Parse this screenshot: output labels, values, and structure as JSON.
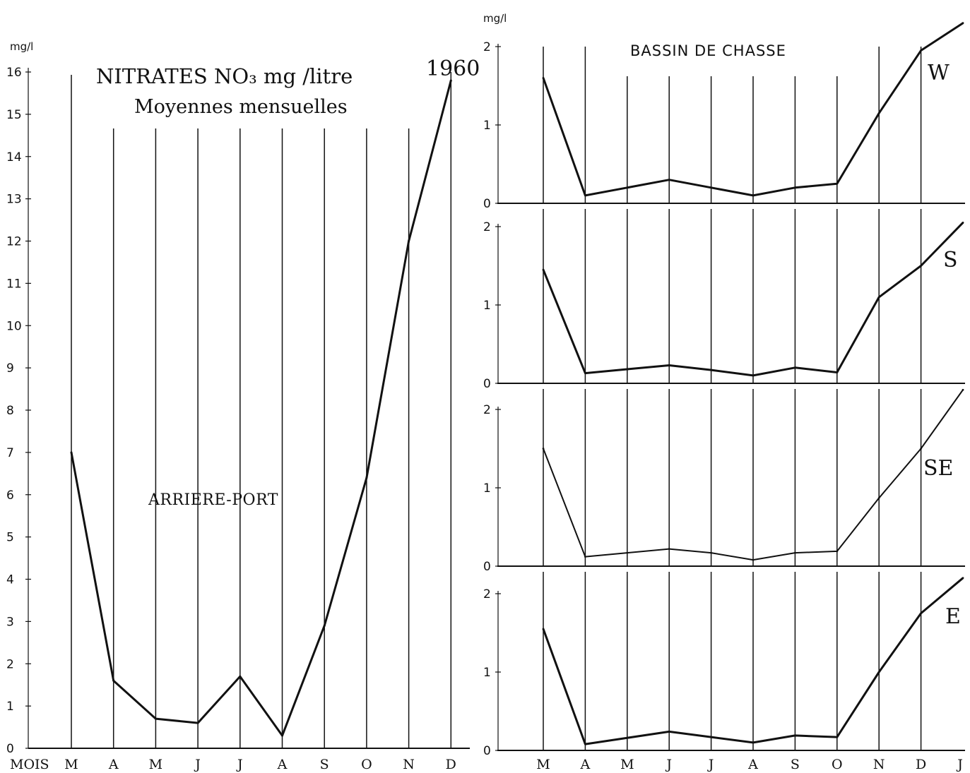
{
  "chart_data": [
    {
      "type": "line",
      "title": "NITRATES NO₃ mg /litre",
      "subtitle": "Moyennes mensuelles",
      "year": "1960",
      "annotation": "ARRIERE-PORT",
      "ylabel": "mg/l",
      "xlabel": "MOIS",
      "categories": [
        "M",
        "A",
        "M",
        "J",
        "J",
        "A",
        "S",
        "O",
        "N",
        "D"
      ],
      "yticks": [
        "0",
        "1",
        "2",
        "3",
        "4",
        "5",
        "6",
        "7",
        "8",
        "9",
        "10",
        "11",
        "12",
        "13",
        "14",
        "15",
        "16"
      ],
      "ylim": [
        0,
        16
      ],
      "series": [
        {
          "values": [
            7.0,
            1.6,
            0.7,
            0.6,
            1.7,
            0.3,
            2.9,
            6.4,
            12.0,
            15.8
          ]
        }
      ]
    },
    {
      "type": "line",
      "title": "BASSIN DE CHASSE",
      "ylabel": "mg/l",
      "categories": [
        "M",
        "A",
        "M",
        "J",
        "J",
        "A",
        "S",
        "O",
        "N",
        "D",
        "J"
      ],
      "yticks": [
        "0",
        "1",
        "2"
      ],
      "ylim": [
        0,
        2
      ],
      "panels": [
        {
          "label": "W",
          "values": [
            1.6,
            0.1,
            0.2,
            0.3,
            0.2,
            0.1,
            0.2,
            0.25,
            1.15,
            1.95,
            2.3
          ]
        },
        {
          "label": "S",
          "values": [
            1.45,
            0.13,
            0.18,
            0.23,
            0.17,
            0.1,
            0.2,
            0.14,
            1.1,
            1.5,
            2.05
          ]
        },
        {
          "label": "SE",
          "values": [
            1.5,
            0.12,
            0.17,
            0.22,
            0.17,
            0.08,
            0.17,
            0.19,
            0.87,
            1.5,
            2.25
          ]
        },
        {
          "label": "E",
          "values": [
            1.55,
            0.08,
            0.16,
            0.24,
            0.17,
            0.1,
            0.19,
            0.17,
            1.0,
            1.75,
            2.2
          ]
        }
      ]
    }
  ]
}
